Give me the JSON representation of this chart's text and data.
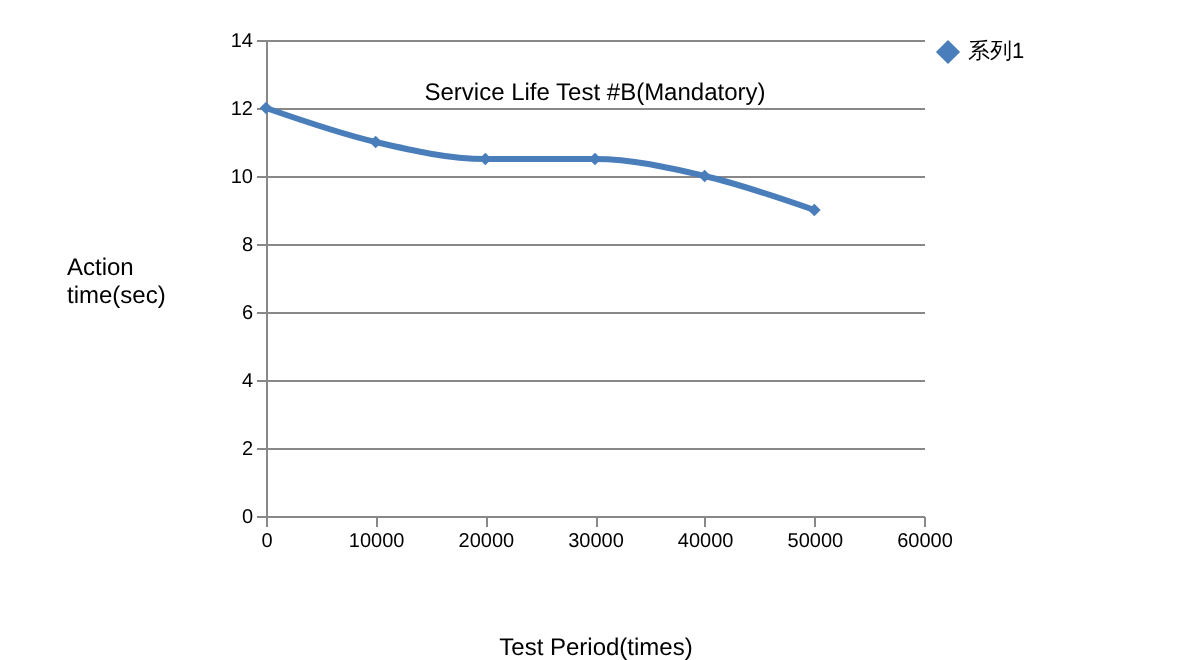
{
  "chart_data": {
    "type": "line",
    "title": "Service Life Test #B(Mandatory)",
    "xlabel": "Test Period(times)",
    "ylabel": "Action time(sec)",
    "x": [
      0,
      10000,
      20000,
      30000,
      40000,
      50000
    ],
    "series": [
      {
        "name": "系列1",
        "color": "#4a7ebb",
        "values": [
          12,
          11,
          10.5,
          10.5,
          10,
          9
        ]
      }
    ],
    "xlim": [
      0,
      60000
    ],
    "xticks": [
      0,
      10000,
      20000,
      30000,
      40000,
      50000,
      60000
    ],
    "ylim": [
      0,
      14
    ],
    "yticks": [
      0,
      2,
      4,
      6,
      8,
      10,
      12,
      14
    ],
    "grid": "y",
    "legend": "right",
    "marker": "diamond",
    "line_style": "solid"
  }
}
